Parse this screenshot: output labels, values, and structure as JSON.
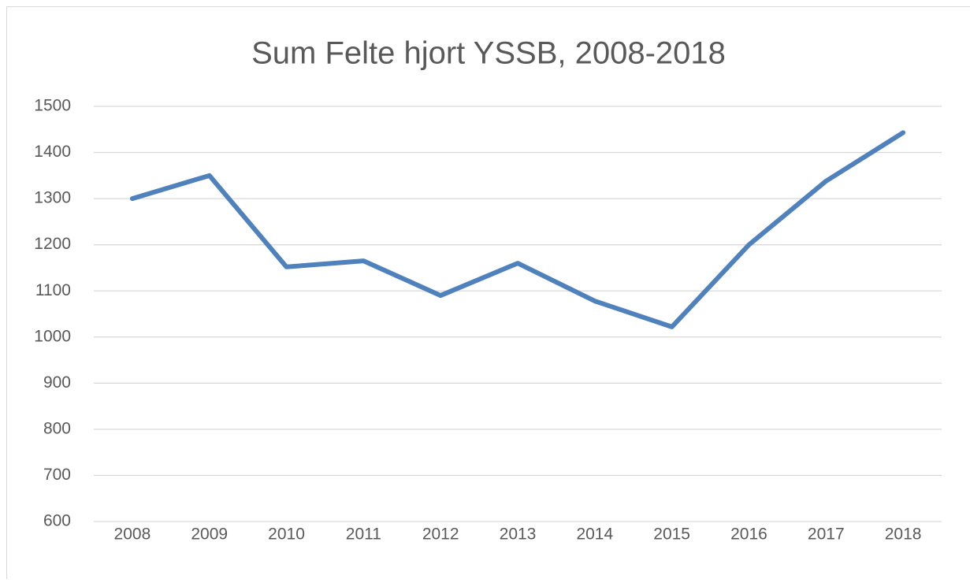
{
  "chart_data": {
    "type": "line",
    "title": "Sum Felte hjort YSSB, 2008-2018",
    "categories": [
      "2008",
      "2009",
      "2010",
      "2011",
      "2012",
      "2013",
      "2014",
      "2015",
      "2016",
      "2017",
      "2018"
    ],
    "series": [
      {
        "name": "Sum Felte hjort YSSB",
        "color": "#4f81bd",
        "values": [
          1300,
          1350,
          1152,
          1165,
          1090,
          1160,
          1078,
          1022,
          1200,
          1338,
          1443
        ]
      }
    ],
    "ylim": [
      600,
      1500
    ],
    "yticks": [
      600,
      700,
      800,
      900,
      1000,
      1100,
      1200,
      1300,
      1400,
      1500
    ],
    "grid": true
  }
}
